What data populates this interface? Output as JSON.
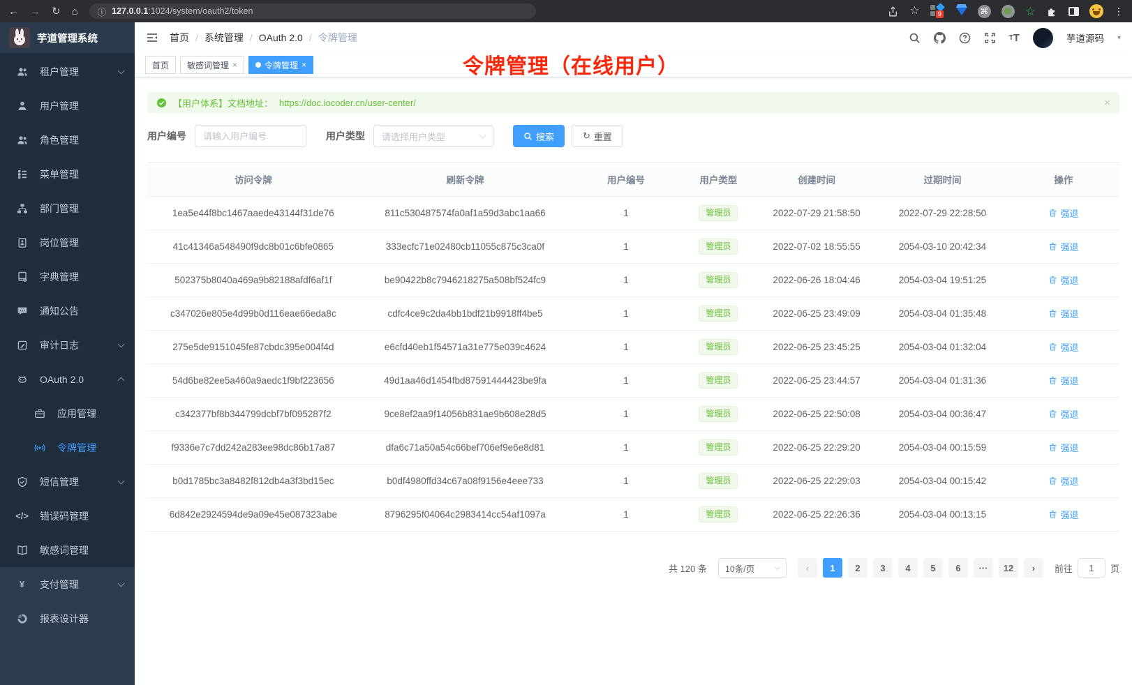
{
  "browser": {
    "url_host": "127.0.0.1",
    "url_path": ":1024/system/oauth2/token",
    "extension_badge": "9"
  },
  "sidebar": {
    "app_title": "芋道管理系统",
    "menu": [
      {
        "name": "tenant-management",
        "icon": "team-icon",
        "label": "租户管理",
        "arrow": "down"
      },
      {
        "name": "user-management",
        "icon": "user-icon",
        "label": "用户管理"
      },
      {
        "name": "role-management",
        "icon": "team-icon",
        "label": "角色管理"
      },
      {
        "name": "menu-management",
        "icon": "menu-tree-icon",
        "label": "菜单管理"
      },
      {
        "name": "department-management",
        "icon": "org-chart-icon",
        "label": "部门管理"
      },
      {
        "name": "position-management",
        "icon": "id-badge-icon",
        "label": "岗位管理"
      },
      {
        "name": "dictionary-management",
        "icon": "dictionary-icon",
        "label": "字典管理"
      },
      {
        "name": "notice-announcement",
        "icon": "chat-icon",
        "label": "通知公告"
      },
      {
        "name": "audit-log",
        "icon": "edit-log-icon",
        "label": "审计日志",
        "arrow": "down"
      },
      {
        "name": "oauth2",
        "icon": "robot-icon",
        "label": "OAuth 2.0",
        "arrow": "up",
        "children": [
          {
            "name": "application-management",
            "icon": "briefcase-icon",
            "label": "应用管理"
          },
          {
            "name": "token-management",
            "icon": "signal-icon",
            "label": "令牌管理",
            "active": true
          }
        ]
      },
      {
        "name": "sms-management",
        "icon": "shield-check-icon",
        "label": "短信管理",
        "arrow": "down"
      },
      {
        "name": "error-code-management",
        "icon": "code-icon",
        "label": "错误码管理"
      },
      {
        "name": "sensitive-word-management",
        "icon": "open-book-icon",
        "label": "敏感词管理"
      },
      {
        "name": "payment-management",
        "icon": "yen-icon",
        "label": "支付管理",
        "arrow": "down",
        "section": "light"
      },
      {
        "name": "report-designer",
        "icon": "pie-chart-icon",
        "label": "报表设计器",
        "section": "light"
      }
    ]
  },
  "topbar": {
    "breadcrumb": [
      "首页",
      "系统管理",
      "OAuth 2.0",
      "令牌管理"
    ],
    "username": "芋道源码"
  },
  "tabs": [
    {
      "label": "首页",
      "closable": false,
      "active": false
    },
    {
      "label": "敏感词管理",
      "closable": true,
      "active": false
    },
    {
      "label": "令牌管理",
      "closable": true,
      "active": true
    }
  ],
  "annotation": {
    "text": "令牌管理（在线用户）",
    "color": "#f7290c"
  },
  "alert": {
    "text": "【用户体系】文档地址：",
    "link": "https://doc.iocoder.cn/user-center/"
  },
  "filters": {
    "user_id_label": "用户编号",
    "user_id_placeholder": "请输入用户编号",
    "user_type_label": "用户类型",
    "user_type_placeholder": "请选择用户类型",
    "search_label": "搜索",
    "reset_label": "重置"
  },
  "table": {
    "columns": [
      "访问令牌",
      "刷新令牌",
      "用户编号",
      "用户类型",
      "创建时间",
      "过期时间",
      "操作"
    ],
    "action_label": "强退",
    "user_type_badge_color": "#67c23a",
    "accent_color": "#409eff",
    "rows": [
      {
        "access_token": "1ea5e44f8bc1467aaede43144f31de76",
        "refresh_token": "811c530487574fa0af1a59d3abc1aa66",
        "user_id": "1",
        "user_type": "管理员",
        "created": "2022-07-29 21:58:50",
        "expires": "2022-07-29 22:28:50"
      },
      {
        "access_token": "41c41346a548490f9dc8b01c6bfe0865",
        "refresh_token": "333ecfc71e02480cb11055c875c3ca0f",
        "user_id": "1",
        "user_type": "管理员",
        "created": "2022-07-02 18:55:55",
        "expires": "2054-03-10 20:42:34"
      },
      {
        "access_token": "502375b8040a469a9b82188afdf6af1f",
        "refresh_token": "be90422b8c7946218275a508bf524fc9",
        "user_id": "1",
        "user_type": "管理员",
        "created": "2022-06-26 18:04:46",
        "expires": "2054-03-04 19:51:25"
      },
      {
        "access_token": "c347026e805e4d99b0d116eae66eda8c",
        "refresh_token": "cdfc4ce9c2da4bb1bdf21b9918ff4be5",
        "user_id": "1",
        "user_type": "管理员",
        "created": "2022-06-25 23:49:09",
        "expires": "2054-03-04 01:35:48"
      },
      {
        "access_token": "275e5de9151045fe87cbdc395e004f4d",
        "refresh_token": "e6cfd40eb1f54571a31e775e039c4624",
        "user_id": "1",
        "user_type": "管理员",
        "created": "2022-06-25 23:45:25",
        "expires": "2054-03-04 01:32:04"
      },
      {
        "access_token": "54d6be82ee5a460a9aedc1f9bf223656",
        "refresh_token": "49d1aa46d1454fbd87591444423be9fa",
        "user_id": "1",
        "user_type": "管理员",
        "created": "2022-06-25 23:44:57",
        "expires": "2054-03-04 01:31:36"
      },
      {
        "access_token": "c342377bf8b344799dcbf7bf095287f2",
        "refresh_token": "9ce8ef2aa9f14056b831ae9b608e28d5",
        "user_id": "1",
        "user_type": "管理员",
        "created": "2022-06-25 22:50:08",
        "expires": "2054-03-04 00:36:47"
      },
      {
        "access_token": "f9336e7c7dd242a283ee98dc86b17a87",
        "refresh_token": "dfa6c71a50a54c66bef706ef9e6e8d81",
        "user_id": "1",
        "user_type": "管理员",
        "created": "2022-06-25 22:29:20",
        "expires": "2054-03-04 00:15:59"
      },
      {
        "access_token": "b0d1785bc3a8482f812db4a3f3bd15ec",
        "refresh_token": "b0df4980ffd34c67a08f9156e4eee733",
        "user_id": "1",
        "user_type": "管理员",
        "created": "2022-06-25 22:29:03",
        "expires": "2054-03-04 00:15:42"
      },
      {
        "access_token": "6d842e2924594de9a09e45e087323abe",
        "refresh_token": "8796295f04064c2983414cc54af1097a",
        "user_id": "1",
        "user_type": "管理员",
        "created": "2022-06-25 22:26:36",
        "expires": "2054-03-04 00:13:15"
      }
    ]
  },
  "pagination": {
    "total": "共 120 条",
    "page_size": "10条/页",
    "pages": [
      "1",
      "2",
      "3",
      "4",
      "5",
      "6",
      "···",
      "12"
    ],
    "active_page": "1",
    "goto_label": "前往",
    "goto_value": "1",
    "goto_suffix": "页"
  }
}
